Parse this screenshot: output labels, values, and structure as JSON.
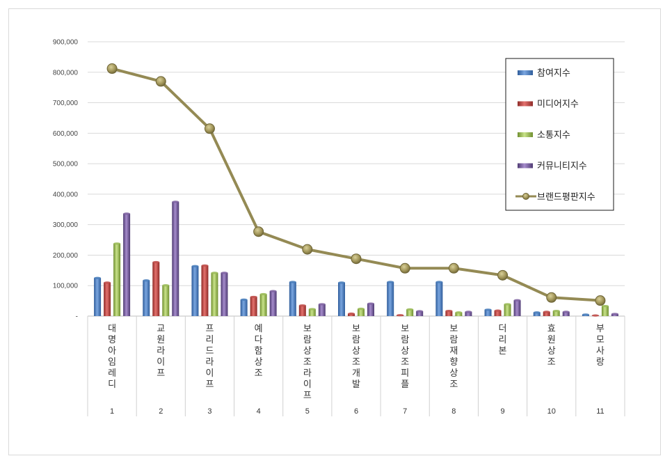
{
  "chart_data": {
    "type": "bar",
    "title": "",
    "xlabel": "",
    "ylabel": "",
    "ylim": [
      0,
      900000
    ],
    "yticks": [
      "-",
      "100,000",
      "200,000",
      "300,000",
      "400,000",
      "500,000",
      "600,000",
      "700,000",
      "800,000",
      "900,000"
    ],
    "grid": true,
    "legend_position": "top-right",
    "categories": [
      {
        "name": "대명아임레디",
        "num": "1"
      },
      {
        "name": "교원라이프",
        "num": "2"
      },
      {
        "name": "프리드라이프",
        "num": "3"
      },
      {
        "name": "예다함상조",
        "num": "4"
      },
      {
        "name": "보람상조라이프",
        "num": "5"
      },
      {
        "name": "보람상조개발",
        "num": "6"
      },
      {
        "name": "보람상조피플",
        "num": "7"
      },
      {
        "name": "보람재향상조",
        "num": "8"
      },
      {
        "name": "더리본",
        "num": "9"
      },
      {
        "name": "효원상조",
        "num": "10"
      },
      {
        "name": "부모사랑",
        "num": "11"
      }
    ],
    "series": [
      {
        "name": "참여지수",
        "type": "bar",
        "color": "#4a7ebb",
        "values": [
          125000,
          117000,
          164000,
          54000,
          112000,
          110000,
          112000,
          112000,
          21000,
          12000,
          5000
        ]
      },
      {
        "name": "미디어지수",
        "type": "bar",
        "color": "#c0504d",
        "values": [
          110000,
          177000,
          166000,
          63000,
          35000,
          8000,
          3000,
          17000,
          18000,
          14000,
          2000
        ]
      },
      {
        "name": "소통지수",
        "type": "bar",
        "color": "#9bbb59",
        "values": [
          238000,
          101000,
          142000,
          72000,
          23000,
          24000,
          22000,
          12000,
          39000,
          17000,
          33000
        ]
      },
      {
        "name": "커뮤니티지수",
        "type": "bar",
        "color": "#8064a2",
        "values": [
          336000,
          375000,
          142000,
          82000,
          39000,
          41000,
          16000,
          14000,
          52000,
          14000,
          7000
        ]
      },
      {
        "name": "브랜드평판지수",
        "type": "line",
        "color": "#948a54",
        "values": [
          812000,
          770000,
          615000,
          277000,
          219000,
          188000,
          157000,
          157000,
          134000,
          61000,
          51000
        ]
      }
    ]
  }
}
